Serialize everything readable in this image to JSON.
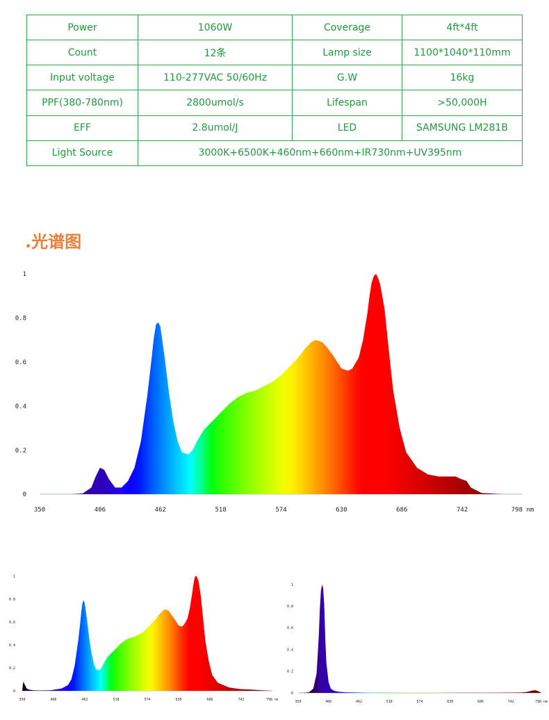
{
  "specs": {
    "rows": [
      {
        "k1": "Power",
        "v1": "1060W",
        "k2": "Coverage",
        "v2": "4ft*4ft"
      },
      {
        "k1": "Count",
        "v1": "12条",
        "k2": "Lamp size",
        "v2": "1100*1040*110mm"
      },
      {
        "k1": "Input voltage",
        "v1": "110-277VAC 50/60Hz",
        "k2": "G.W",
        "v2": "16kg"
      },
      {
        "k1": "PPF(380-780nm)",
        "v1": "2800umol/s",
        "k2": "Lifespan",
        "v2": ">50,000H"
      },
      {
        "k1": "EFF",
        "v1": "2.8umol/J",
        "k2": "LED",
        "v2": "SAMSUNG LM281B"
      }
    ],
    "last": {
      "k1": "Light Source",
      "v1": "3000K+6500K+460nm+660nm+IR730nm+UV395nm"
    }
  },
  "section_title": ".光谱图",
  "chart_data": [
    {
      "type": "area",
      "x_ticks": [
        "350",
        "406",
        "462",
        "518",
        "574",
        "630",
        "686",
        "742",
        "798 nm"
      ],
      "y_ticks": [
        "0",
        "0.2",
        "0.4",
        "0.6",
        "0.8",
        "1"
      ],
      "xlim": [
        350,
        798
      ],
      "ylim": [
        0,
        1
      ],
      "series": [
        {
          "x": [
            350,
            380,
            390,
            398,
            402,
            406,
            410,
            414,
            420,
            426,
            432,
            438,
            444,
            450,
            454,
            456,
            458,
            460,
            462,
            466,
            470,
            474,
            478,
            482,
            488,
            492,
            496,
            502,
            510,
            518,
            526,
            534,
            542,
            550,
            558,
            566,
            574,
            582,
            590,
            596,
            602,
            606,
            612,
            616,
            622,
            626,
            630,
            636,
            640,
            646,
            650,
            654,
            656,
            658,
            660,
            662,
            664,
            666,
            670,
            674,
            678,
            684,
            690,
            700,
            710,
            720,
            730,
            736,
            740,
            746,
            750,
            760,
            780,
            798
          ],
          "y": [
            0,
            0,
            0.003,
            0.03,
            0.08,
            0.12,
            0.11,
            0.07,
            0.03,
            0.03,
            0.06,
            0.12,
            0.24,
            0.45,
            0.62,
            0.71,
            0.77,
            0.78,
            0.76,
            0.62,
            0.46,
            0.33,
            0.24,
            0.19,
            0.18,
            0.2,
            0.24,
            0.29,
            0.33,
            0.37,
            0.41,
            0.44,
            0.46,
            0.47,
            0.49,
            0.51,
            0.54,
            0.58,
            0.62,
            0.66,
            0.69,
            0.7,
            0.69,
            0.67,
            0.63,
            0.6,
            0.57,
            0.56,
            0.57,
            0.62,
            0.7,
            0.82,
            0.9,
            0.96,
            0.99,
            1.0,
            0.98,
            0.95,
            0.84,
            0.65,
            0.47,
            0.3,
            0.19,
            0.12,
            0.09,
            0.08,
            0.08,
            0.08,
            0.07,
            0.06,
            0.03,
            0.005,
            0,
            0
          ]
        }
      ]
    },
    {
      "type": "area",
      "x_ticks": [
        "350",
        "406",
        "462",
        "518",
        "574",
        "630",
        "686",
        "742",
        "798 nm"
      ],
      "y_ticks": [
        "0",
        "0.2",
        "0.4",
        "0.6",
        "0.8",
        "1"
      ],
      "xlim": [
        350,
        798
      ],
      "ylim": [
        0,
        1
      ],
      "series": [
        {
          "x": [
            350,
            351,
            352,
            354,
            356,
            358,
            362,
            370,
            380,
            400,
            420,
            432,
            438,
            444,
            450,
            454,
            456,
            458,
            460,
            462,
            466,
            470,
            474,
            478,
            482,
            488,
            492,
            496,
            502,
            510,
            518,
            526,
            534,
            542,
            550,
            558,
            566,
            574,
            582,
            590,
            596,
            602,
            606,
            612,
            616,
            622,
            626,
            630,
            636,
            640,
            646,
            650,
            654,
            656,
            658,
            660,
            662,
            664,
            666,
            670,
            674,
            678,
            684,
            690,
            700,
            720,
            740,
            760,
            780,
            798
          ],
          "y": [
            0,
            0.05,
            0.08,
            0.06,
            0.04,
            0.02,
            0.01,
            0.005,
            0.003,
            0.004,
            0.02,
            0.05,
            0.1,
            0.22,
            0.43,
            0.6,
            0.7,
            0.77,
            0.79,
            0.76,
            0.62,
            0.46,
            0.33,
            0.24,
            0.19,
            0.18,
            0.2,
            0.24,
            0.29,
            0.33,
            0.37,
            0.41,
            0.44,
            0.46,
            0.47,
            0.49,
            0.51,
            0.55,
            0.59,
            0.63,
            0.67,
            0.7,
            0.71,
            0.7,
            0.67,
            0.63,
            0.6,
            0.57,
            0.56,
            0.58,
            0.63,
            0.72,
            0.84,
            0.91,
            0.97,
            1.0,
            1.0,
            0.98,
            0.95,
            0.82,
            0.62,
            0.43,
            0.26,
            0.14,
            0.07,
            0.03,
            0.015,
            0.01,
            0.005,
            0
          ]
        }
      ]
    },
    {
      "type": "area",
      "x_ticks": [
        "350",
        "406",
        "462",
        "518",
        "574",
        "630",
        "686",
        "742",
        "798 nm"
      ],
      "y_ticks": [
        "0",
        "0.2",
        "0.4",
        "0.6",
        "0.8",
        "1"
      ],
      "xlim": [
        350,
        798
      ],
      "ylim": [
        0,
        1
      ],
      "series": [
        {
          "x": [
            350,
            360,
            370,
            378,
            384,
            388,
            390,
            392,
            394,
            396,
            398,
            400,
            402,
            406,
            410,
            416,
            424,
            440,
            480,
            560,
            640,
            700,
            740,
            760,
            770,
            776,
            780,
            786,
            790,
            794,
            798
          ],
          "y": [
            0,
            0.002,
            0.006,
            0.04,
            0.18,
            0.52,
            0.78,
            0.94,
            1.0,
            0.97,
            0.82,
            0.5,
            0.28,
            0.1,
            0.04,
            0.02,
            0.01,
            0.005,
            0.003,
            0.002,
            0.002,
            0.002,
            0.003,
            0.004,
            0.008,
            0.015,
            0.02,
            0.025,
            0.02,
            0.01,
            0
          ]
        }
      ]
    }
  ]
}
